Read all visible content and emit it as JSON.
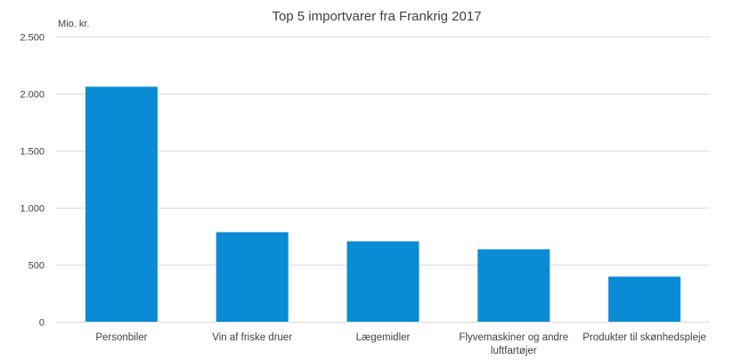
{
  "chart_data": {
    "type": "bar",
    "title": "Top 5 importvarer fra Frankrig 2017",
    "unit_label": "Mio. kr.",
    "categories": [
      [
        "Personbiler"
      ],
      [
        "Vin af friske druer"
      ],
      [
        "Lægemidler"
      ],
      [
        "Flyvemaskiner og andre",
        "luftfartøjer"
      ],
      [
        "Produkter til skønhedspleje"
      ]
    ],
    "values": [
      2060,
      785,
      705,
      635,
      395
    ],
    "ylim": [
      0,
      2500
    ],
    "yticks": [
      0,
      500,
      1000,
      1500,
      2000,
      2500
    ],
    "ytick_labels": [
      "0",
      "500",
      "1.000",
      "1.500",
      "2.000",
      "2.500"
    ],
    "grid": true,
    "bar_color": "#0a8bd6",
    "grid_color": "#d9d9d9"
  }
}
